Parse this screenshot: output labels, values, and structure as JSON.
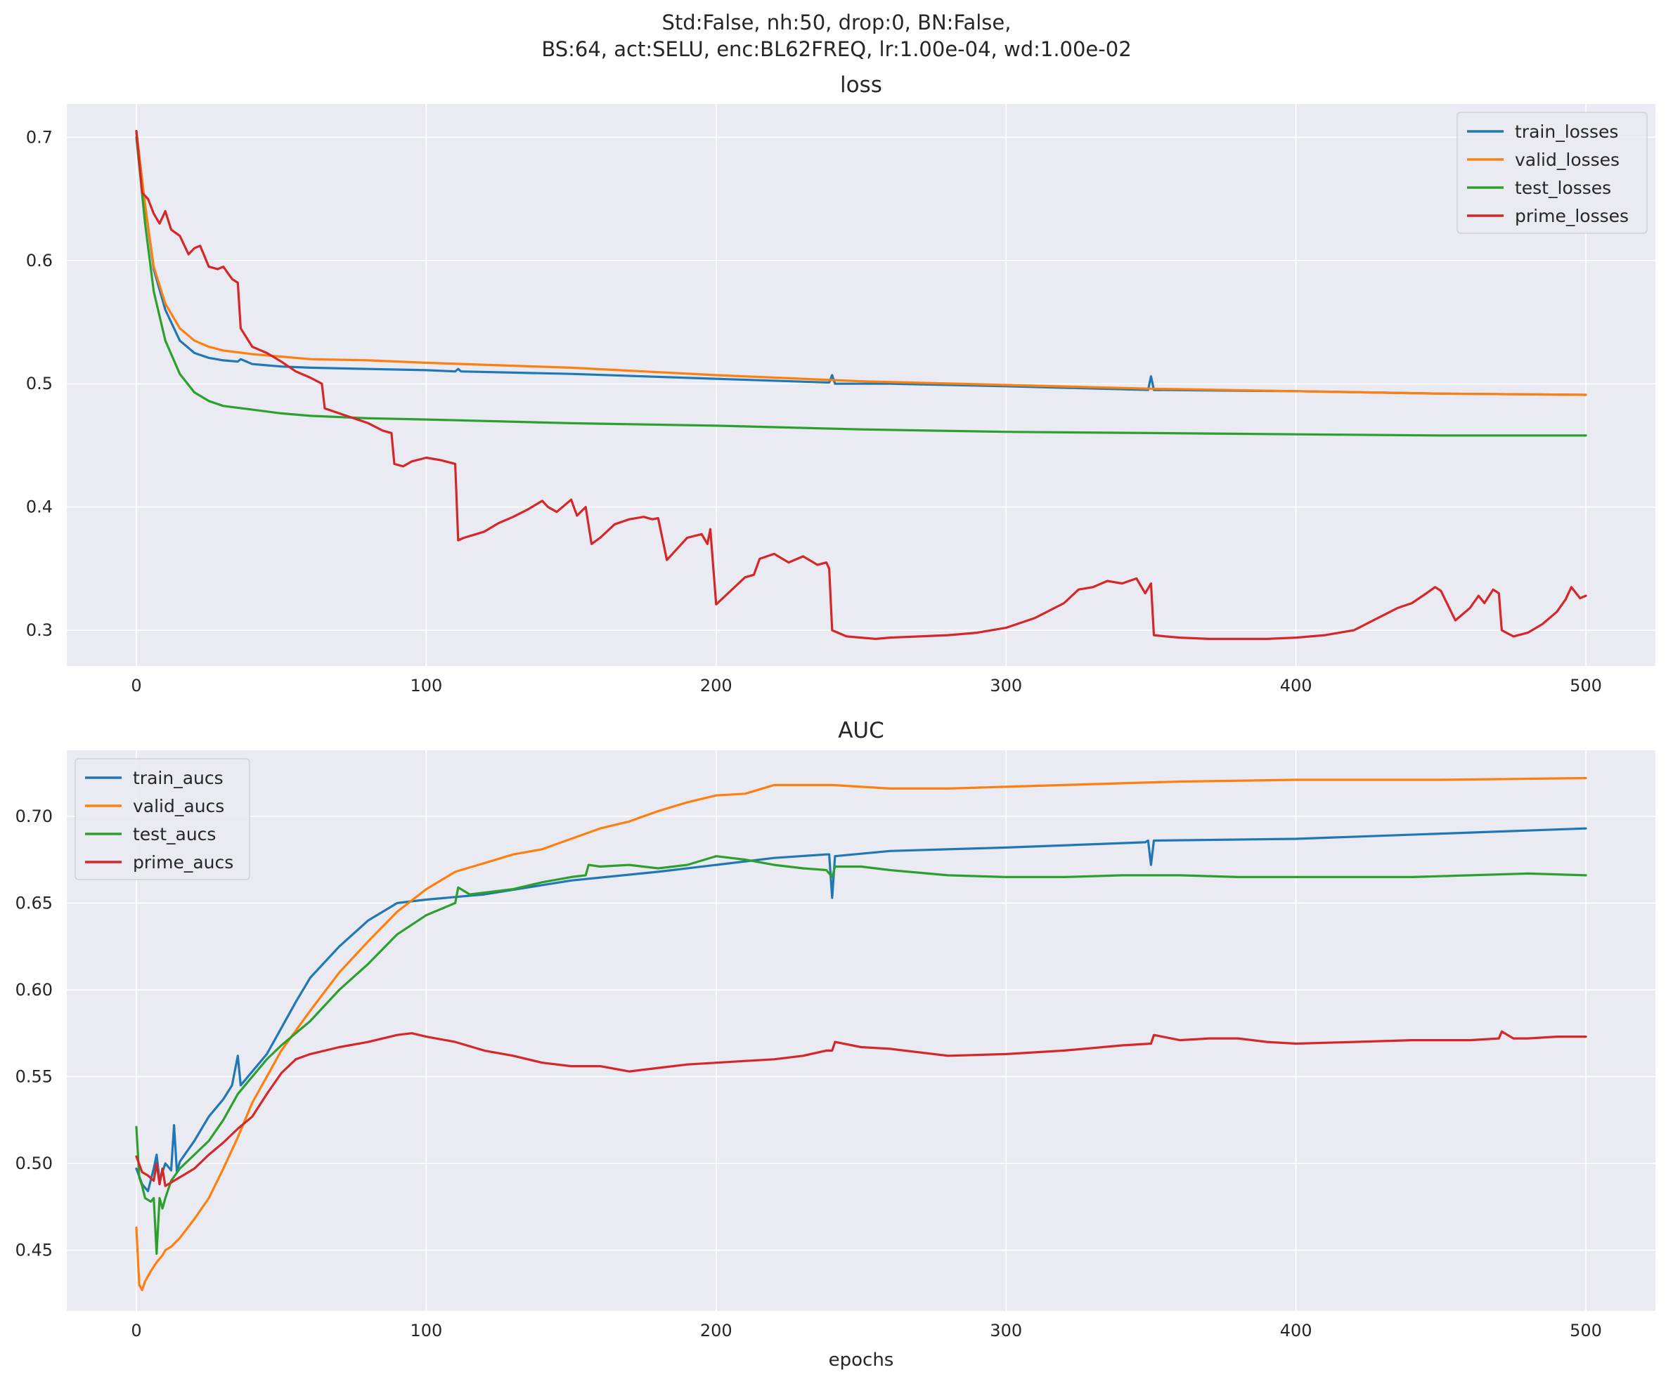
{
  "figure_title_line1": "Std:False, nh:50, drop:0, BN:False,",
  "figure_title_line2": "BS:64, act:SELU, enc:BL62FREQ, lr:1.00e-04, wd:1.00e-02",
  "colors": {
    "background": "#eaeaf2",
    "grid": "#ffffff",
    "train": "#1f77b4",
    "valid": "#ff7f0e",
    "test": "#2ca02c",
    "prime": "#d62728"
  },
  "chart_data": [
    {
      "type": "line",
      "title": "loss",
      "xlabel": "",
      "ylabel": "",
      "xlim": [
        -24,
        524
      ],
      "ylim": [
        0.271,
        0.727
      ],
      "xticks": [
        0,
        100,
        200,
        300,
        400,
        500
      ],
      "yticks": [
        0.3,
        0.4,
        0.5,
        0.6,
        0.7
      ],
      "ytick_labels": [
        "0.3",
        "0.4",
        "0.5",
        "0.6",
        "0.7"
      ],
      "grid": true,
      "legend_position": "upper right",
      "series": [
        {
          "name": "train_losses",
          "color": "#1f77b4",
          "x": [
            0,
            3,
            6,
            10,
            15,
            20,
            25,
            30,
            35,
            36,
            40,
            50,
            60,
            80,
            100,
            110,
            111,
            112,
            150,
            200,
            239,
            240,
            241,
            260,
            300,
            349,
            350,
            351,
            400,
            450,
            500
          ],
          "y": [
            0.705,
            0.645,
            0.593,
            0.56,
            0.535,
            0.525,
            0.521,
            0.519,
            0.518,
            0.52,
            0.516,
            0.514,
            0.513,
            0.512,
            0.511,
            0.51,
            0.512,
            0.51,
            0.508,
            0.504,
            0.501,
            0.507,
            0.5,
            0.5,
            0.498,
            0.495,
            0.506,
            0.495,
            0.494,
            0.492,
            0.491
          ]
        },
        {
          "name": "valid_losses",
          "color": "#ff7f0e",
          "x": [
            0,
            3,
            6,
            10,
            15,
            20,
            25,
            30,
            40,
            50,
            60,
            80,
            100,
            150,
            200,
            250,
            300,
            350,
            400,
            450,
            500
          ],
          "y": [
            0.705,
            0.645,
            0.595,
            0.565,
            0.545,
            0.535,
            0.53,
            0.527,
            0.524,
            0.522,
            0.52,
            0.519,
            0.517,
            0.513,
            0.507,
            0.502,
            0.499,
            0.496,
            0.494,
            0.492,
            0.491
          ]
        },
        {
          "name": "test_losses",
          "color": "#2ca02c",
          "x": [
            0,
            3,
            6,
            10,
            15,
            20,
            25,
            30,
            40,
            50,
            60,
            80,
            100,
            150,
            200,
            250,
            300,
            350,
            400,
            450,
            500
          ],
          "y": [
            0.7,
            0.63,
            0.575,
            0.535,
            0.508,
            0.493,
            0.486,
            0.482,
            0.479,
            0.476,
            0.474,
            0.472,
            0.471,
            0.468,
            0.466,
            0.463,
            0.461,
            0.46,
            0.459,
            0.458,
            0.458
          ]
        },
        {
          "name": "prime_losses",
          "color": "#d62728",
          "x": [
            0,
            2,
            4,
            6,
            8,
            10,
            12,
            15,
            18,
            20,
            22,
            25,
            28,
            30,
            33,
            35,
            36,
            40,
            45,
            50,
            55,
            60,
            64,
            65,
            70,
            75,
            80,
            85,
            88,
            89,
            92,
            95,
            100,
            105,
            110,
            111,
            113,
            120,
            125,
            130,
            135,
            140,
            142,
            145,
            150,
            152,
            155,
            157,
            160,
            165,
            170,
            175,
            178,
            180,
            183,
            190,
            195,
            197,
            198,
            200,
            205,
            210,
            213,
            215,
            220,
            225,
            230,
            235,
            238,
            239,
            240,
            245,
            250,
            255,
            260,
            270,
            280,
            290,
            300,
            310,
            320,
            325,
            330,
            335,
            340,
            345,
            348,
            350,
            351,
            355,
            360,
            370,
            380,
            390,
            400,
            410,
            420,
            425,
            430,
            435,
            440,
            445,
            448,
            450,
            455,
            460,
            463,
            465,
            468,
            470,
            471,
            475,
            480,
            485,
            490,
            493,
            495,
            498,
            500
          ],
          "y": [
            0.705,
            0.655,
            0.65,
            0.638,
            0.63,
            0.64,
            0.625,
            0.62,
            0.605,
            0.61,
            0.612,
            0.595,
            0.593,
            0.595,
            0.585,
            0.582,
            0.545,
            0.53,
            0.525,
            0.518,
            0.51,
            0.505,
            0.5,
            0.48,
            0.476,
            0.472,
            0.468,
            0.462,
            0.46,
            0.435,
            0.433,
            0.437,
            0.44,
            0.438,
            0.435,
            0.373,
            0.375,
            0.38,
            0.387,
            0.392,
            0.398,
            0.405,
            0.4,
            0.396,
            0.406,
            0.393,
            0.4,
            0.37,
            0.375,
            0.386,
            0.39,
            0.392,
            0.39,
            0.391,
            0.357,
            0.375,
            0.378,
            0.37,
            0.382,
            0.321,
            0.332,
            0.343,
            0.345,
            0.358,
            0.362,
            0.355,
            0.36,
            0.353,
            0.355,
            0.35,
            0.3,
            0.295,
            0.294,
            0.293,
            0.294,
            0.295,
            0.296,
            0.298,
            0.302,
            0.31,
            0.322,
            0.333,
            0.335,
            0.34,
            0.338,
            0.342,
            0.33,
            0.338,
            0.296,
            0.295,
            0.294,
            0.293,
            0.293,
            0.293,
            0.294,
            0.296,
            0.3,
            0.306,
            0.312,
            0.318,
            0.322,
            0.33,
            0.335,
            0.332,
            0.308,
            0.318,
            0.328,
            0.322,
            0.333,
            0.33,
            0.3,
            0.295,
            0.298,
            0.305,
            0.315,
            0.325,
            0.335,
            0.326,
            0.328
          ]
        }
      ]
    },
    {
      "type": "line",
      "title": "AUC",
      "xlabel": "epochs",
      "ylabel": "",
      "xlim": [
        -24,
        524
      ],
      "ylim": [
        0.415,
        0.738
      ],
      "xticks": [
        0,
        100,
        200,
        300,
        400,
        500
      ],
      "yticks": [
        0.45,
        0.5,
        0.55,
        0.6,
        0.65,
        0.7
      ],
      "ytick_labels": [
        "0.45",
        "0.50",
        "0.55",
        "0.60",
        "0.65",
        "0.70"
      ],
      "grid": true,
      "legend_position": "upper left",
      "series": [
        {
          "name": "train_aucs",
          "color": "#1f77b4",
          "x": [
            0,
            2,
            4,
            6,
            7,
            8,
            10,
            12,
            13,
            14,
            15,
            20,
            25,
            30,
            33,
            35,
            36,
            40,
            45,
            50,
            55,
            60,
            70,
            80,
            90,
            100,
            120,
            150,
            180,
            200,
            220,
            238,
            239,
            240,
            241,
            260,
            300,
            348,
            349,
            350,
            351,
            400,
            450,
            500
          ],
          "y": [
            0.497,
            0.488,
            0.484,
            0.497,
            0.505,
            0.49,
            0.5,
            0.496,
            0.522,
            0.495,
            0.501,
            0.513,
            0.527,
            0.537,
            0.545,
            0.562,
            0.545,
            0.553,
            0.563,
            0.578,
            0.593,
            0.607,
            0.625,
            0.64,
            0.65,
            0.652,
            0.655,
            0.663,
            0.668,
            0.672,
            0.676,
            0.678,
            0.678,
            0.653,
            0.677,
            0.68,
            0.682,
            0.685,
            0.686,
            0.672,
            0.686,
            0.687,
            0.69,
            0.693
          ]
        },
        {
          "name": "valid_aucs",
          "color": "#ff7f0e",
          "x": [
            0,
            1,
            2,
            3,
            5,
            7,
            9,
            10,
            12,
            15,
            20,
            25,
            30,
            35,
            40,
            45,
            50,
            60,
            70,
            80,
            90,
            100,
            110,
            120,
            130,
            140,
            150,
            160,
            170,
            180,
            190,
            200,
            210,
            220,
            230,
            240,
            250,
            260,
            280,
            300,
            320,
            340,
            360,
            400,
            450,
            500
          ],
          "y": [
            0.463,
            0.43,
            0.427,
            0.432,
            0.438,
            0.443,
            0.447,
            0.45,
            0.452,
            0.457,
            0.468,
            0.48,
            0.497,
            0.515,
            0.535,
            0.55,
            0.565,
            0.588,
            0.61,
            0.628,
            0.645,
            0.658,
            0.668,
            0.673,
            0.678,
            0.681,
            0.687,
            0.693,
            0.697,
            0.703,
            0.708,
            0.712,
            0.713,
            0.718,
            0.718,
            0.718,
            0.717,
            0.716,
            0.716,
            0.717,
            0.718,
            0.719,
            0.72,
            0.721,
            0.721,
            0.722
          ]
        },
        {
          "name": "test_aucs",
          "color": "#2ca02c",
          "x": [
            0,
            1,
            2,
            3,
            5,
            6,
            7,
            8,
            9,
            10,
            12,
            15,
            20,
            25,
            30,
            35,
            40,
            45,
            50,
            60,
            70,
            80,
            90,
            100,
            110,
            111,
            115,
            120,
            130,
            140,
            150,
            155,
            156,
            160,
            170,
            180,
            190,
            200,
            210,
            220,
            230,
            238,
            239,
            240,
            241,
            250,
            260,
            280,
            300,
            320,
            340,
            360,
            380,
            400,
            420,
            440,
            460,
            480,
            500
          ],
          "y": [
            0.521,
            0.492,
            0.487,
            0.48,
            0.478,
            0.48,
            0.448,
            0.48,
            0.474,
            0.48,
            0.49,
            0.497,
            0.505,
            0.513,
            0.525,
            0.54,
            0.55,
            0.56,
            0.568,
            0.582,
            0.6,
            0.615,
            0.632,
            0.643,
            0.65,
            0.659,
            0.655,
            0.656,
            0.658,
            0.662,
            0.665,
            0.666,
            0.672,
            0.671,
            0.672,
            0.67,
            0.672,
            0.677,
            0.675,
            0.672,
            0.67,
            0.669,
            0.667,
            0.665,
            0.671,
            0.671,
            0.669,
            0.666,
            0.665,
            0.665,
            0.666,
            0.666,
            0.665,
            0.665,
            0.665,
            0.665,
            0.666,
            0.667,
            0.666
          ]
        },
        {
          "name": "prime_aucs",
          "color": "#d62728",
          "x": [
            0,
            2,
            4,
            6,
            7,
            8,
            9,
            10,
            15,
            20,
            25,
            30,
            35,
            40,
            45,
            50,
            55,
            60,
            70,
            80,
            90,
            95,
            100,
            110,
            120,
            130,
            140,
            150,
            160,
            170,
            180,
            190,
            200,
            210,
            220,
            230,
            238,
            240,
            241,
            250,
            260,
            280,
            300,
            320,
            340,
            350,
            351,
            360,
            370,
            380,
            390,
            400,
            420,
            440,
            460,
            470,
            471,
            475,
            480,
            490,
            500
          ],
          "y": [
            0.504,
            0.495,
            0.493,
            0.49,
            0.5,
            0.488,
            0.497,
            0.487,
            0.492,
            0.497,
            0.505,
            0.512,
            0.52,
            0.527,
            0.54,
            0.552,
            0.56,
            0.563,
            0.567,
            0.57,
            0.574,
            0.575,
            0.573,
            0.57,
            0.565,
            0.562,
            0.558,
            0.556,
            0.556,
            0.553,
            0.555,
            0.557,
            0.558,
            0.559,
            0.56,
            0.562,
            0.565,
            0.565,
            0.57,
            0.567,
            0.566,
            0.562,
            0.563,
            0.565,
            0.568,
            0.569,
            0.574,
            0.571,
            0.572,
            0.572,
            0.57,
            0.569,
            0.57,
            0.571,
            0.571,
            0.572,
            0.576,
            0.572,
            0.572,
            0.573,
            0.573
          ]
        }
      ]
    }
  ]
}
